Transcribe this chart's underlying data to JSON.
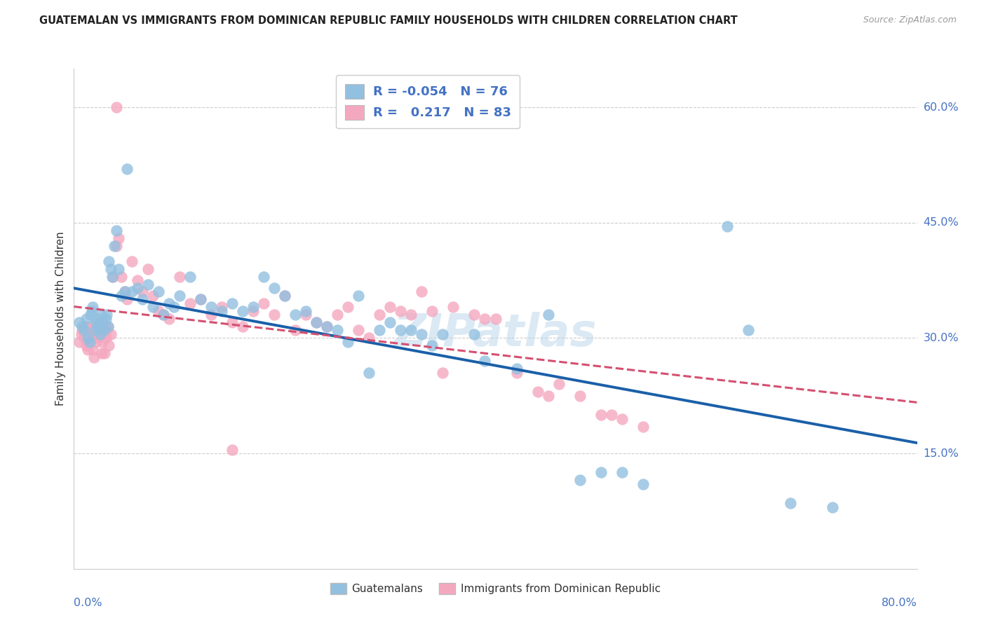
{
  "title": "GUATEMALAN VS IMMIGRANTS FROM DOMINICAN REPUBLIC FAMILY HOUSEHOLDS WITH CHILDREN CORRELATION CHART",
  "source": "Source: ZipAtlas.com",
  "ylabel": "Family Households with Children",
  "yticks": [
    0.0,
    0.15,
    0.3,
    0.45,
    0.6
  ],
  "ytick_labels": [
    "",
    "15.0%",
    "30.0%",
    "45.0%",
    "60.0%"
  ],
  "xmin": 0.0,
  "xmax": 0.8,
  "ymin": 0.0,
  "ymax": 0.65,
  "blue_color": "#92c0e0",
  "pink_color": "#f4a8c0",
  "blue_line_color": "#1a5fa8",
  "pink_line_color": "#d45070",
  "axis_color": "#4472c4",
  "watermark": "ZIPatlas",
  "legend_R_blue": "-0.054",
  "legend_N_blue": "76",
  "legend_R_pink": "0.217",
  "legend_N_pink": "83",
  "blue_x": [
    0.005,
    0.008,
    0.01,
    0.012,
    0.013,
    0.015,
    0.016,
    0.017,
    0.018,
    0.02,
    0.021,
    0.022,
    0.023,
    0.025,
    0.026,
    0.027,
    0.028,
    0.03,
    0.031,
    0.032,
    0.033,
    0.035,
    0.036,
    0.038,
    0.04,
    0.042,
    0.045,
    0.048,
    0.05,
    0.055,
    0.06,
    0.065,
    0.07,
    0.075,
    0.08,
    0.085,
    0.09,
    0.095,
    0.1,
    0.11,
    0.12,
    0.13,
    0.14,
    0.15,
    0.16,
    0.17,
    0.18,
    0.19,
    0.2,
    0.21,
    0.22,
    0.23,
    0.24,
    0.25,
    0.26,
    0.27,
    0.28,
    0.29,
    0.3,
    0.31,
    0.32,
    0.33,
    0.34,
    0.35,
    0.38,
    0.39,
    0.42,
    0.45,
    0.48,
    0.5,
    0.52,
    0.54,
    0.62,
    0.64,
    0.68,
    0.72
  ],
  "blue_y": [
    0.32,
    0.315,
    0.31,
    0.325,
    0.3,
    0.295,
    0.33,
    0.335,
    0.34,
    0.31,
    0.32,
    0.325,
    0.315,
    0.305,
    0.33,
    0.32,
    0.31,
    0.325,
    0.33,
    0.315,
    0.4,
    0.39,
    0.38,
    0.42,
    0.44,
    0.39,
    0.355,
    0.36,
    0.52,
    0.36,
    0.365,
    0.35,
    0.37,
    0.34,
    0.36,
    0.33,
    0.345,
    0.34,
    0.355,
    0.38,
    0.35,
    0.34,
    0.335,
    0.345,
    0.335,
    0.34,
    0.38,
    0.365,
    0.355,
    0.33,
    0.335,
    0.32,
    0.315,
    0.31,
    0.295,
    0.355,
    0.255,
    0.31,
    0.32,
    0.31,
    0.31,
    0.305,
    0.29,
    0.305,
    0.305,
    0.27,
    0.26,
    0.33,
    0.115,
    0.125,
    0.125,
    0.11,
    0.445,
    0.31,
    0.085,
    0.08
  ],
  "pink_x": [
    0.005,
    0.007,
    0.008,
    0.01,
    0.011,
    0.012,
    0.013,
    0.014,
    0.015,
    0.016,
    0.017,
    0.018,
    0.019,
    0.02,
    0.021,
    0.022,
    0.023,
    0.024,
    0.025,
    0.026,
    0.027,
    0.028,
    0.029,
    0.03,
    0.031,
    0.032,
    0.033,
    0.035,
    0.037,
    0.04,
    0.042,
    0.045,
    0.048,
    0.05,
    0.055,
    0.06,
    0.065,
    0.07,
    0.075,
    0.08,
    0.085,
    0.09,
    0.1,
    0.11,
    0.12,
    0.13,
    0.14,
    0.15,
    0.16,
    0.17,
    0.18,
    0.19,
    0.2,
    0.21,
    0.22,
    0.23,
    0.24,
    0.25,
    0.26,
    0.27,
    0.28,
    0.29,
    0.3,
    0.31,
    0.32,
    0.33,
    0.34,
    0.35,
    0.36,
    0.38,
    0.39,
    0.4,
    0.42,
    0.44,
    0.45,
    0.46,
    0.48,
    0.5,
    0.51,
    0.52,
    0.54,
    0.15,
    0.04
  ],
  "pink_y": [
    0.295,
    0.305,
    0.31,
    0.3,
    0.315,
    0.29,
    0.285,
    0.295,
    0.305,
    0.31,
    0.315,
    0.285,
    0.275,
    0.3,
    0.295,
    0.305,
    0.31,
    0.32,
    0.315,
    0.28,
    0.295,
    0.305,
    0.28,
    0.3,
    0.31,
    0.315,
    0.29,
    0.305,
    0.38,
    0.42,
    0.43,
    0.38,
    0.36,
    0.35,
    0.4,
    0.375,
    0.36,
    0.39,
    0.355,
    0.335,
    0.33,
    0.325,
    0.38,
    0.345,
    0.35,
    0.33,
    0.34,
    0.32,
    0.315,
    0.335,
    0.345,
    0.33,
    0.355,
    0.31,
    0.33,
    0.32,
    0.315,
    0.33,
    0.34,
    0.31,
    0.3,
    0.33,
    0.34,
    0.335,
    0.33,
    0.36,
    0.335,
    0.255,
    0.34,
    0.33,
    0.325,
    0.325,
    0.255,
    0.23,
    0.225,
    0.24,
    0.225,
    0.2,
    0.2,
    0.195,
    0.185,
    0.155,
    0.6
  ]
}
